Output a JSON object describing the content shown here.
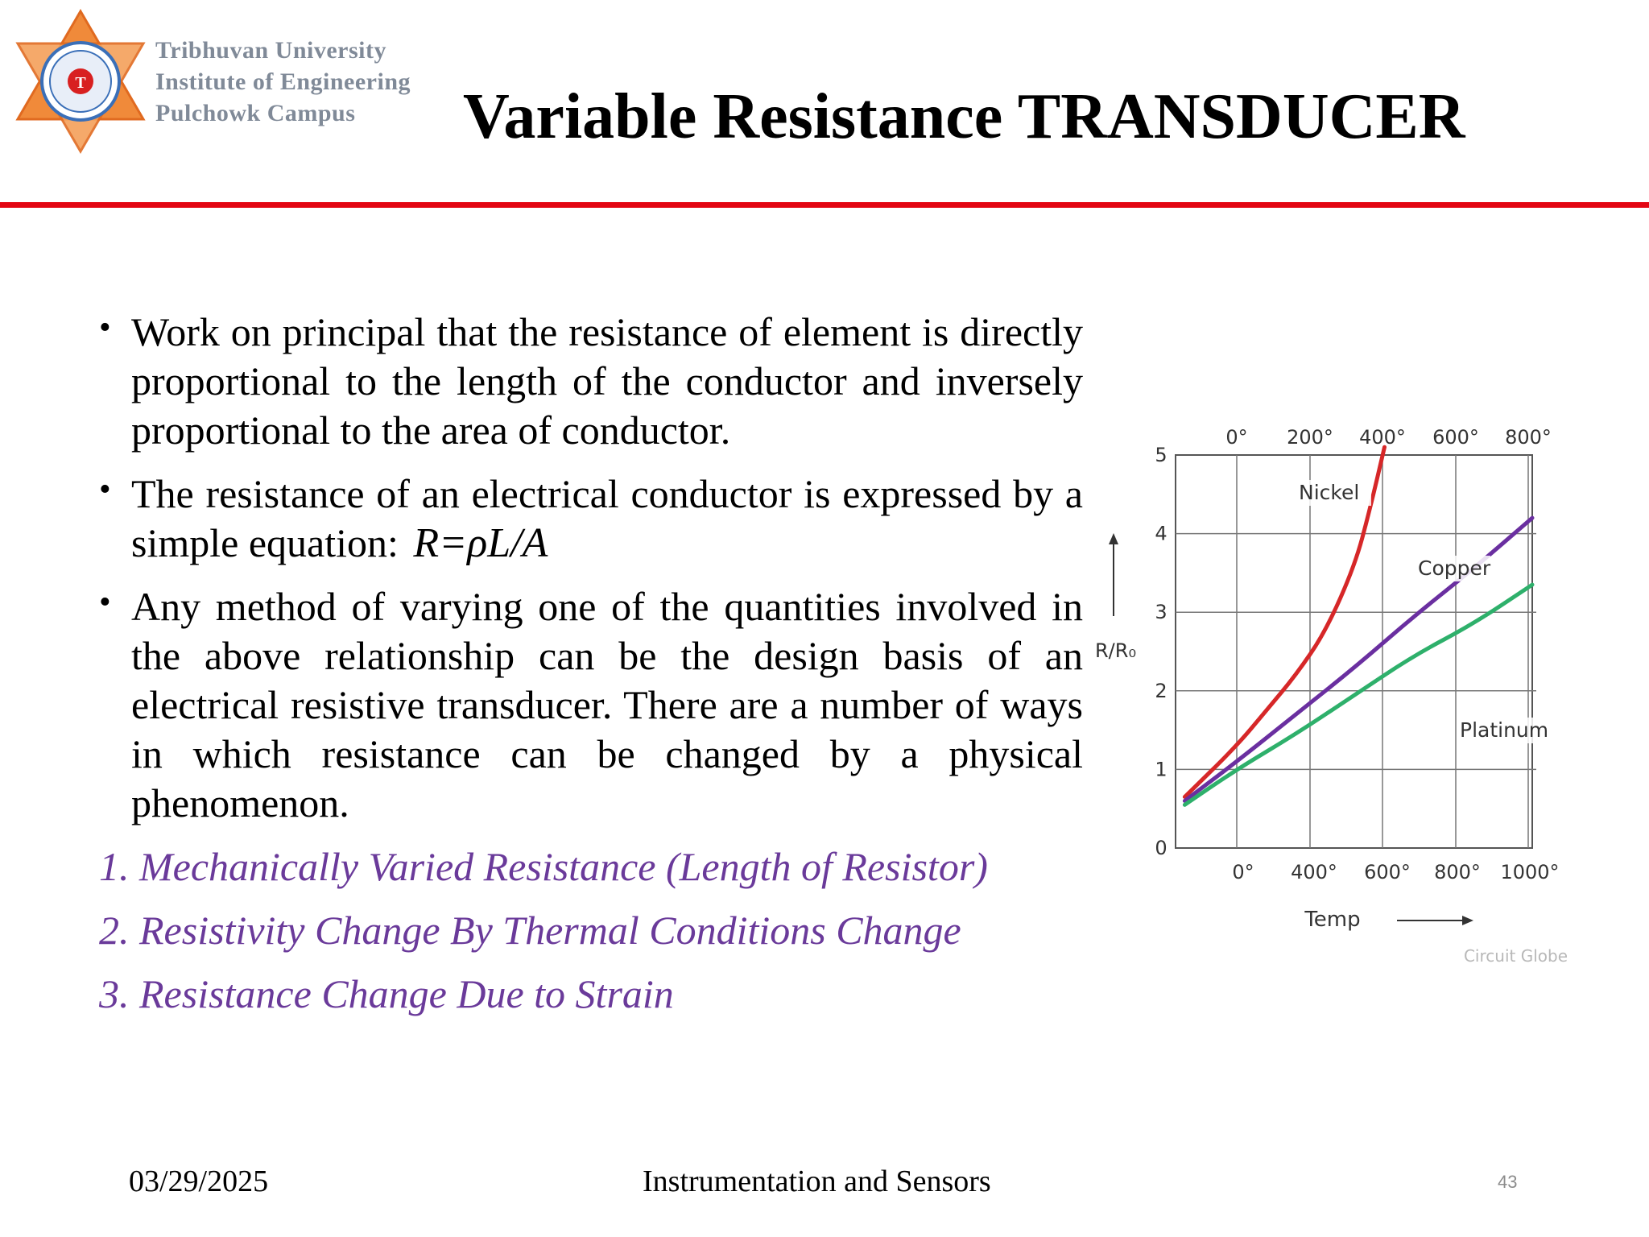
{
  "header": {
    "logo_lines": [
      "Tribhuvan University",
      "Institute of Engineering",
      "Pulchowk Campus"
    ],
    "title": "Variable Resistance TRANSDUCER"
  },
  "content": {
    "bullets": [
      {
        "text": "Work on principal that the resistance of element is directly proportional to the length of the conductor and inversely proportional to the area of conductor."
      },
      {
        "text": "The resistance of an electrical conductor is expressed by a simple equation:",
        "equation": "R=ρL/A"
      },
      {
        "text": "Any method of varying one of the quantities involved in the above relationship can be the design basis of an electrical resistive transducer. There are a number of ways in which resistance can be changed by a physical phenomenon."
      }
    ],
    "numbered": [
      "1. Mechanically Varied Resistance (Length of Resistor)",
      "2. Resistivity Change By Thermal Conditions Change",
      "3. Resistance Change Due to Strain"
    ],
    "colors": {
      "accent_rule": "#e30613",
      "list_text": "#6a3a9a"
    }
  },
  "chart_data": {
    "type": "line",
    "xlabel": "Temp",
    "ylabel": "R/R₀",
    "top_axis_ticks": [
      "0°",
      "200°",
      "400°",
      "600°",
      "800°"
    ],
    "bottom_axis_ticks": [
      "0°",
      "400°",
      "600°",
      "800°",
      "1000°"
    ],
    "y_ticks": [
      "0",
      "1",
      "2",
      "3",
      "4",
      "5"
    ],
    "ylim": [
      0,
      5
    ],
    "x_grid_positions": [
      0,
      200,
      400,
      600,
      800,
      1000
    ],
    "series": [
      {
        "name": "Nickel",
        "color": "#d62728",
        "x": [
          -170,
          0,
          100,
          200,
          300,
          400,
          450,
          500
        ],
        "y": [
          0.65,
          1.3,
          1.75,
          2.2,
          2.75,
          3.6,
          4.3,
          5.1
        ]
      },
      {
        "name": "Copper",
        "color": "#6a2fa0",
        "x": [
          -170,
          0,
          200,
          400,
          600,
          800,
          1000
        ],
        "y": [
          0.6,
          1.1,
          1.7,
          2.3,
          2.95,
          3.55,
          4.2
        ]
      },
      {
        "name": "Platinum",
        "color": "#2eb06b",
        "x": [
          -170,
          0,
          200,
          400,
          600,
          800,
          1000
        ],
        "y": [
          0.55,
          1.0,
          1.45,
          1.95,
          2.45,
          2.85,
          3.35
        ]
      }
    ],
    "watermark": "Circuit Globe",
    "grid": true
  },
  "footer": {
    "date": "03/29/2025",
    "course": "Instrumentation and Sensors",
    "page": "43"
  }
}
